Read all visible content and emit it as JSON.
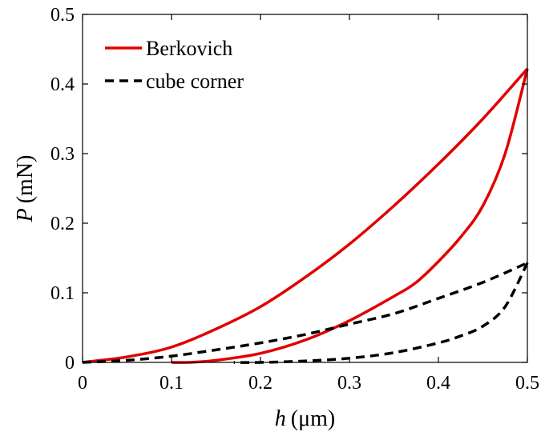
{
  "chart_data": {
    "type": "line",
    "title": "",
    "xlabel_var": "h",
    "xlabel_unit": "(μm)",
    "ylabel_var": "P",
    "ylabel_unit": "(mN)",
    "xlim": [
      0,
      0.5
    ],
    "ylim": [
      0,
      0.5
    ],
    "xticks": [
      "0",
      "0.1",
      "0.2",
      "0.3",
      "0.4",
      "0.5"
    ],
    "yticks": [
      "0",
      "0.1",
      "0.2",
      "0.3",
      "0.4",
      "0.5"
    ],
    "grid": false,
    "legend_position": "top-left",
    "series": [
      {
        "name": "Berkovich",
        "color": "#e00000",
        "dash": "solid",
        "segments": [
          {
            "label": "loading",
            "x": [
              0,
              0.05,
              0.1,
              0.15,
              0.2,
              0.25,
              0.3,
              0.35,
              0.4,
              0.45,
              0.5
            ],
            "y": [
              0,
              0.008,
              0.022,
              0.048,
              0.08,
              0.122,
              0.17,
              0.225,
              0.285,
              0.35,
              0.422
            ]
          },
          {
            "label": "unloading",
            "x": [
              0.5,
              0.475,
              0.45,
              0.425,
              0.4,
              0.375,
              0.35,
              0.3,
              0.25,
              0.2,
              0.15,
              0.12,
              0.1
            ],
            "y": [
              0.422,
              0.3,
              0.225,
              0.18,
              0.145,
              0.115,
              0.095,
              0.06,
              0.032,
              0.013,
              0.003,
              0.0,
              0.0
            ]
          }
        ]
      },
      {
        "name": "cube corner",
        "color": "#000000",
        "dash": "dashed",
        "segments": [
          {
            "label": "loading",
            "x": [
              0,
              0.05,
              0.1,
              0.15,
              0.2,
              0.25,
              0.3,
              0.35,
              0.4,
              0.45,
              0.5
            ],
            "y": [
              0,
              0.003,
              0.009,
              0.018,
              0.028,
              0.04,
              0.055,
              0.07,
              0.092,
              0.115,
              0.143
            ]
          },
          {
            "label": "unloading",
            "x": [
              0.5,
              0.475,
              0.45,
              0.425,
              0.4,
              0.35,
              0.3,
              0.25,
              0.2,
              0.17
            ],
            "y": [
              0.143,
              0.08,
              0.052,
              0.038,
              0.028,
              0.014,
              0.006,
              0.002,
              0.0,
              0.0
            ]
          }
        ]
      }
    ]
  }
}
